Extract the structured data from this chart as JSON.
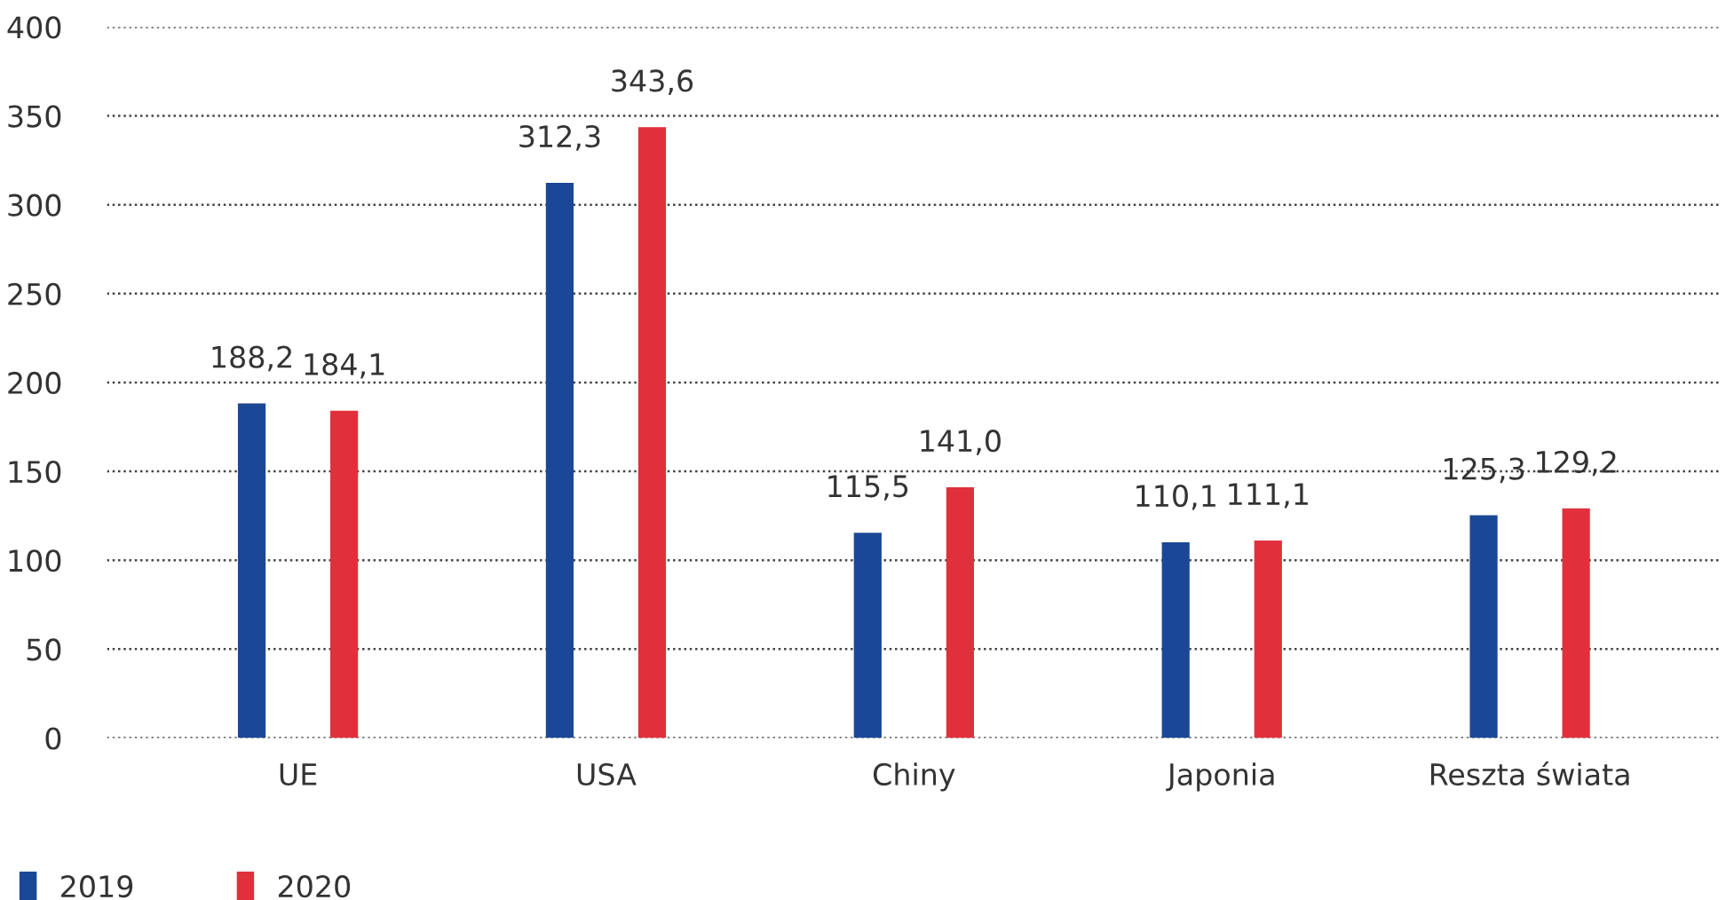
{
  "chart_data": {
    "type": "bar",
    "categories": [
      "UE",
      "USA",
      "Chiny",
      "Japonia",
      "Reszta świata"
    ],
    "series": [
      {
        "name": "2019",
        "color": "#1b4896",
        "values": [
          188.2,
          312.3,
          115.5,
          110.1,
          125.3
        ],
        "value_labels": [
          "188,2",
          "312,3",
          "115,5",
          "110,1",
          "125,3"
        ]
      },
      {
        "name": "2020",
        "color": "#e0303c",
        "values": [
          184.1,
          343.6,
          141.0,
          111.1,
          129.2
        ],
        "value_labels": [
          "184,1",
          "343,6",
          "141,0",
          "111,1",
          "129,2"
        ]
      }
    ],
    "ylim": [
      0,
      400
    ],
    "yticks": [
      0,
      50,
      100,
      150,
      200,
      250,
      300,
      350,
      400
    ],
    "grid": "y",
    "legend": "bottom left"
  }
}
